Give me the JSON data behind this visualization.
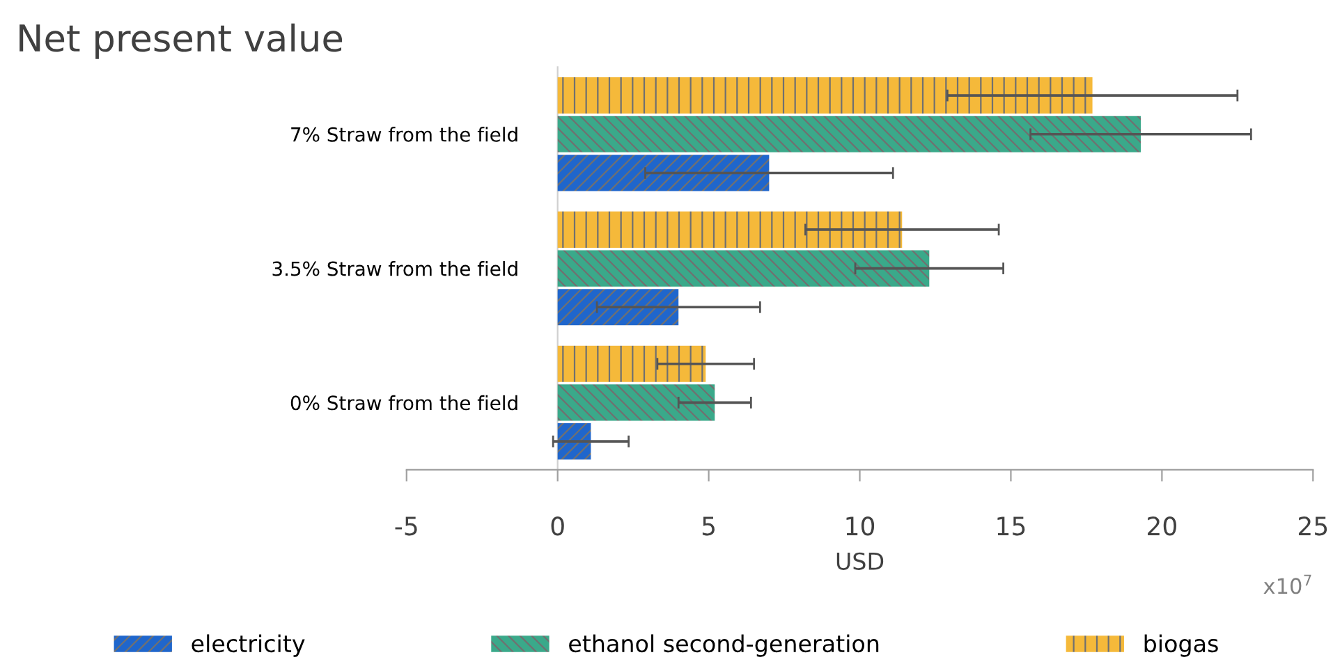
{
  "chart_data": {
    "type": "bar",
    "orientation": "horizontal",
    "title": "Net present value",
    "xlabel": "USD",
    "categories": [
      "7% Straw from the field",
      "3.5% Straw from the field",
      "0% Straw from the field"
    ],
    "series": [
      {
        "name": "electricity",
        "color": "#1f66cc",
        "values": [
          7.0,
          4.0,
          1.1
        ],
        "errors": [
          4.1,
          2.7,
          1.25
        ]
      },
      {
        "name": "ethanol second-generation",
        "color": "#3aa98a",
        "values": [
          19.3,
          12.3,
          5.2
        ],
        "errors": [
          3.65,
          2.45,
          1.2
        ]
      },
      {
        "name": "biogas",
        "color": "#f5b93a",
        "values": [
          17.7,
          11.4,
          4.9
        ],
        "errors": [
          4.8,
          3.2,
          1.6
        ]
      }
    ],
    "xlim": [
      -5,
      25
    ],
    "xticks": [
      -5,
      0,
      5,
      10,
      15,
      20,
      25
    ],
    "grid": false,
    "legend": "bottom",
    "annotations": [
      "x10$^{7}$"
    ]
  }
}
